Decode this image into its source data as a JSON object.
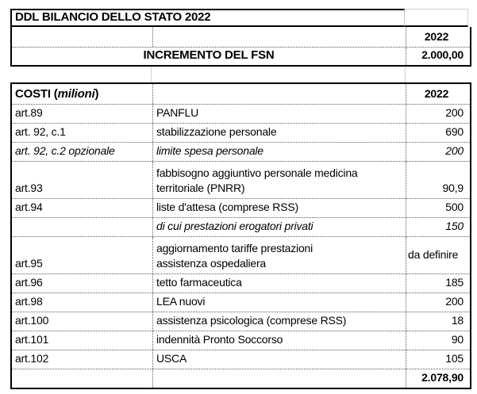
{
  "colors": {
    "outer_border": "#000000",
    "inner_border_dotted": "#595959",
    "sheet_gridline": "#d0d0d0",
    "text": "#000000",
    "background": "#ffffff"
  },
  "top_table": {
    "title": "DDL BILANCIO DELLO STATO 2022",
    "year_header": "2022",
    "fsn": {
      "label": "INCREMENTO DEL FSN",
      "value": "2.000,00"
    }
  },
  "costi_table": {
    "header": {
      "prefix": "COSTI (",
      "unit": "milioni",
      "suffix": " )",
      "year": "2022"
    },
    "rows": [
      {
        "art": "art.89",
        "desc": "PANFLU",
        "value": "200"
      },
      {
        "art": "art. 92, c.1",
        "desc": "stabilizzazione personale",
        "value": "690"
      },
      {
        "art": "art. 92, c.2 opzionale",
        "desc": "limite spesa personale",
        "value": "200"
      },
      {
        "art": "art.93",
        "desc": "fabbisogno aggiuntivo personale medicina\nterritoriale (PNRR)",
        "value": "90,9"
      },
      {
        "art": "art.94",
        "desc": "liste d'attesa (comprese RSS)",
        "value": "500"
      },
      {
        "art": "",
        "desc": "di cui prestazioni erogatori privati",
        "value": "150"
      },
      {
        "art": "art.95",
        "desc": "aggiornamento tariffe prestazioni\nassistenza ospedaliera",
        "value": "da definire"
      },
      {
        "art": "art.96",
        "desc": "tetto farmaceutica",
        "value": "185"
      },
      {
        "art": "art.98",
        "desc": "LEA nuovi",
        "value": "200"
      },
      {
        "art": "art.100",
        "desc": "assistenza psicologica (comprese RSS)",
        "value": "18"
      },
      {
        "art": "art.101",
        "desc": "indennità Pronto Soccorso",
        "value": "90"
      },
      {
        "art": "art.102",
        "desc": "USCA",
        "value": "105"
      }
    ],
    "total": "2.078,90"
  }
}
